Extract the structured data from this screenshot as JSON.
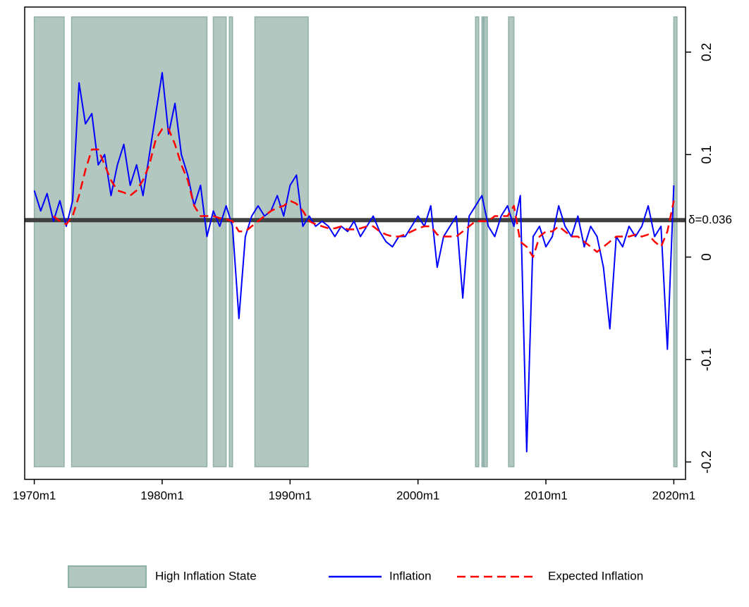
{
  "chart_data": {
    "type": "line",
    "x": [
      "1970m1",
      "1970m7",
      "1971m1",
      "1971m7",
      "1972m1",
      "1972m7",
      "1973m1",
      "1973m7",
      "1974m1",
      "1974m7",
      "1975m1",
      "1975m7",
      "1976m1",
      "1976m7",
      "1977m1",
      "1977m7",
      "1978m1",
      "1978m7",
      "1979m1",
      "1979m7",
      "1980m1",
      "1980m7",
      "1981m1",
      "1981m7",
      "1982m1",
      "1982m7",
      "1983m1",
      "1983m7",
      "1984m1",
      "1984m7",
      "1985m1",
      "1985m7",
      "1986m1",
      "1986m7",
      "1987m1",
      "1987m7",
      "1988m1",
      "1988m7",
      "1989m1",
      "1989m7",
      "1990m1",
      "1990m7",
      "1991m1",
      "1991m7",
      "1992m1",
      "1992m7",
      "1993m1",
      "1993m7",
      "1994m1",
      "1994m7",
      "1995m1",
      "1995m7",
      "1996m1",
      "1996m7",
      "1997m1",
      "1997m7",
      "1998m1",
      "1998m7",
      "1999m1",
      "1999m7",
      "2000m1",
      "2000m7",
      "2001m1",
      "2001m7",
      "2002m1",
      "2002m7",
      "2003m1",
      "2003m7",
      "2004m1",
      "2004m7",
      "2005m1",
      "2005m7",
      "2006m1",
      "2006m7",
      "2007m1",
      "2007m7",
      "2008m1",
      "2008m7",
      "2009m1",
      "2009m7",
      "2010m1",
      "2010m7",
      "2011m1",
      "2011m7",
      "2012m1",
      "2012m7",
      "2013m1",
      "2013m7",
      "2014m1",
      "2014m7",
      "2015m1",
      "2015m7",
      "2016m1",
      "2016m7",
      "2017m1",
      "2017m7",
      "2018m1",
      "2018m7",
      "2019m1",
      "2019m7",
      "2020m1"
    ],
    "series": [
      {
        "name": "Inflation",
        "color": "#0000ff",
        "dashed": false,
        "values": [
          0.065,
          0.045,
          0.062,
          0.035,
          0.055,
          0.03,
          0.055,
          0.17,
          0.13,
          0.14,
          0.09,
          0.1,
          0.06,
          0.09,
          0.11,
          0.07,
          0.09,
          0.06,
          0.1,
          0.14,
          0.18,
          0.12,
          0.15,
          0.1,
          0.08,
          0.05,
          0.07,
          0.02,
          0.045,
          0.03,
          0.05,
          0.03,
          -0.06,
          0.02,
          0.04,
          0.05,
          0.04,
          0.045,
          0.06,
          0.04,
          0.07,
          0.08,
          0.03,
          0.04,
          0.03,
          0.035,
          0.03,
          0.02,
          0.03,
          0.025,
          0.035,
          0.02,
          0.03,
          0.04,
          0.025,
          0.015,
          0.01,
          0.02,
          0.02,
          0.03,
          0.04,
          0.03,
          0.05,
          -0.01,
          0.02,
          0.03,
          0.04,
          -0.04,
          0.04,
          0.05,
          0.06,
          0.03,
          0.02,
          0.04,
          0.05,
          0.03,
          0.06,
          -0.19,
          0.02,
          0.03,
          0.01,
          0.02,
          0.05,
          0.03,
          0.02,
          0.04,
          0.01,
          0.03,
          0.02,
          -0.01,
          -0.07,
          0.02,
          0.01,
          0.03,
          0.02,
          0.03,
          0.05,
          0.02,
          0.03,
          -0.09,
          0.07
        ]
      },
      {
        "name": "Expected Inflation",
        "color": "#ff0000",
        "dashed": true,
        "values": [
          null,
          null,
          null,
          0.04,
          0.035,
          0.032,
          0.04,
          0.06,
          0.085,
          0.105,
          0.105,
          0.09,
          0.075,
          0.065,
          0.063,
          0.06,
          0.065,
          0.075,
          0.09,
          0.115,
          0.125,
          0.125,
          0.11,
          0.09,
          0.075,
          0.05,
          0.04,
          0.04,
          0.04,
          0.038,
          0.037,
          0.035,
          0.025,
          0.025,
          0.03,
          0.035,
          0.04,
          0.045,
          0.048,
          0.05,
          0.055,
          0.052,
          0.045,
          0.035,
          0.032,
          0.03,
          0.028,
          0.028,
          0.03,
          0.027,
          0.027,
          0.028,
          0.03,
          0.03,
          0.025,
          0.022,
          0.02,
          0.02,
          0.022,
          0.025,
          0.028,
          0.03,
          0.03,
          0.022,
          0.02,
          0.02,
          0.02,
          0.025,
          0.03,
          0.035,
          0.035,
          0.035,
          0.04,
          0.04,
          0.04,
          0.05,
          0.015,
          0.01,
          0,
          0.02,
          0.025,
          0.025,
          0.03,
          0.025,
          0.02,
          0.02,
          0.015,
          0.01,
          0.005,
          0.01,
          0.015,
          0.02,
          0.02,
          0.02,
          0.022,
          0.02,
          0.022,
          0.015,
          0.01,
          0.025,
          0.055
        ]
      }
    ],
    "shading": {
      "name": "High Inflation State",
      "color": "#b3c7c1",
      "edge": "#8fb0a8",
      "periods": [
        {
          "start": "1970m1",
          "end": "1972m5"
        },
        {
          "start": "1972m12",
          "end": "1983m7"
        },
        {
          "start": "1984m1",
          "end": "1985m1"
        },
        {
          "start": "1985m4",
          "end": "1985m7"
        },
        {
          "start": "1987m4",
          "end": "1991m6"
        },
        {
          "start": "2004m7",
          "end": "2004m10"
        },
        {
          "start": "2005m1",
          "end": "2005m2"
        },
        {
          "start": "2005m3",
          "end": "2005m6"
        },
        {
          "start": "2007m2",
          "end": "2007m7"
        },
        {
          "start": "2020m1",
          "end": "2020m4"
        }
      ]
    },
    "reference_line": {
      "value": 0.036,
      "label": "δ=0.036",
      "color": "#404040",
      "label_color": "#ff0000"
    },
    "xlim": [
      "1969m4",
      "2020m12"
    ],
    "xticks": [
      "1970m1",
      "1980m1",
      "1990m1",
      "2000m1",
      "2010m1",
      "2020m1"
    ],
    "ylim": [
      -0.217,
      0.244
    ],
    "yticks": [
      -0.2,
      -0.1,
      0,
      0.1,
      0.2
    ],
    "y_axis_side": "right",
    "legend_position": "bottom"
  }
}
